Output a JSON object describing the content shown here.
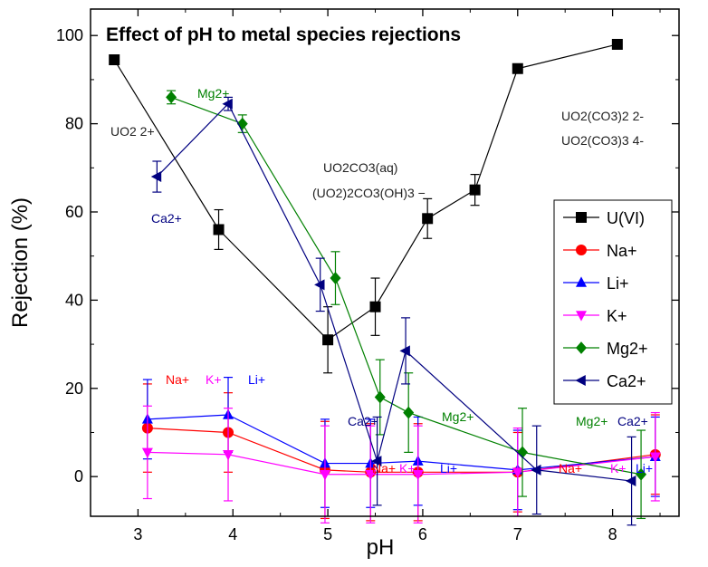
{
  "chart_data": {
    "type": "line",
    "title": "Effect of pH to metal species rejections",
    "xlabel": "pH",
    "ylabel": "Rejection (%)",
    "xlim": [
      2.5,
      8.7
    ],
    "ylim": [
      -9,
      106
    ],
    "xticks": [
      "3",
      "4",
      "5",
      "6",
      "7",
      "8"
    ],
    "yticks": [
      "0",
      "20",
      "40",
      "60",
      "80",
      "100"
    ],
    "legend_position": "right",
    "series": [
      {
        "name": "U(VI)",
        "color": "#000000",
        "marker": "square",
        "points": [
          [
            2.75,
            94.5,
            0
          ],
          [
            3.85,
            56,
            4.5
          ],
          [
            5.0,
            31,
            7.5
          ],
          [
            5.5,
            38.5,
            6.5
          ],
          [
            6.05,
            58.5,
            4.5
          ],
          [
            6.55,
            65,
            3.5
          ],
          [
            7.0,
            92.5,
            0
          ],
          [
            8.05,
            98,
            0
          ]
        ]
      },
      {
        "name": "Na+",
        "color": "#ff0000",
        "marker": "circle",
        "points": [
          [
            3.1,
            11,
            10
          ],
          [
            3.95,
            10,
            9
          ],
          [
            4.97,
            1.5,
            11
          ],
          [
            5.45,
            1,
            11
          ],
          [
            5.95,
            1,
            11
          ],
          [
            7.0,
            1,
            9
          ],
          [
            8.45,
            5,
            9
          ]
        ]
      },
      {
        "name": "Li+",
        "color": "#0000ff",
        "marker": "triangle-up",
        "points": [
          [
            3.1,
            13,
            9
          ],
          [
            3.95,
            14,
            8.5
          ],
          [
            4.97,
            3,
            10
          ],
          [
            5.45,
            3,
            10
          ],
          [
            5.95,
            3.5,
            10
          ],
          [
            7.0,
            1.5,
            9
          ],
          [
            8.45,
            4.5,
            9
          ]
        ]
      },
      {
        "name": "K+",
        "color": "#ff00ff",
        "marker": "triangle-down",
        "points": [
          [
            3.1,
            5.5,
            10.5
          ],
          [
            3.95,
            5,
            10.5
          ],
          [
            4.97,
            0.5,
            11
          ],
          [
            5.45,
            0.5,
            11
          ],
          [
            5.95,
            0.5,
            11
          ],
          [
            7.0,
            1,
            10
          ],
          [
            8.45,
            4.5,
            10
          ]
        ]
      },
      {
        "name": "Mg2+",
        "color": "#008000",
        "marker": "diamond",
        "points": [
          [
            3.35,
            86,
            1.5
          ],
          [
            4.1,
            80,
            2
          ],
          [
            5.08,
            45,
            6
          ],
          [
            5.55,
            18,
            8.5
          ],
          [
            5.85,
            14.5,
            9
          ],
          [
            7.05,
            5.5,
            10
          ],
          [
            8.3,
            0.5,
            10
          ]
        ]
      },
      {
        "name": "Ca2+",
        "color": "#000080",
        "marker": "triangle-left",
        "points": [
          [
            3.2,
            68,
            3.5
          ],
          [
            3.95,
            84.5,
            1.5
          ],
          [
            4.92,
            43.5,
            6
          ],
          [
            5.52,
            3.5,
            10
          ],
          [
            5.82,
            28.5,
            7.5
          ],
          [
            7.2,
            1.5,
            10
          ],
          [
            8.2,
            -1,
            10
          ]
        ]
      }
    ],
    "annotations": [
      {
        "text": "UO2 2+",
        "color": "#222222"
      },
      {
        "text": "Mg2+",
        "color": "#008000"
      },
      {
        "text": "Ca2+",
        "color": "#000080"
      },
      {
        "text": "UO2CO3(aq)",
        "color": "#222222"
      },
      {
        "text": "(UO2)2CO3(OH)3 −",
        "color": "#222222"
      },
      {
        "text": "UO2(CO3)2 2-",
        "color": "#222222"
      },
      {
        "text": "UO2(CO3)3 4-",
        "color": "#222222"
      },
      {
        "text": "Na+",
        "color": "#ff0000"
      },
      {
        "text": "K+",
        "color": "#ff00ff"
      },
      {
        "text": "Li+",
        "color": "#0000ff"
      },
      {
        "text": "Ca2+",
        "color": "#000080"
      },
      {
        "text": "Mg2+",
        "color": "#008000"
      },
      {
        "text": "Na+",
        "color": "#ff0000"
      },
      {
        "text": "K+",
        "color": "#ff00ff"
      },
      {
        "text": "Li+",
        "color": "#0000ff"
      },
      {
        "text": "Mg2+",
        "color": "#008000"
      },
      {
        "text": "Ca2+",
        "color": "#000080"
      },
      {
        "text": "Na+",
        "color": "#ff0000"
      },
      {
        "text": "K+",
        "color": "#ff00ff"
      },
      {
        "text": "Li+",
        "color": "#0000ff"
      }
    ]
  }
}
